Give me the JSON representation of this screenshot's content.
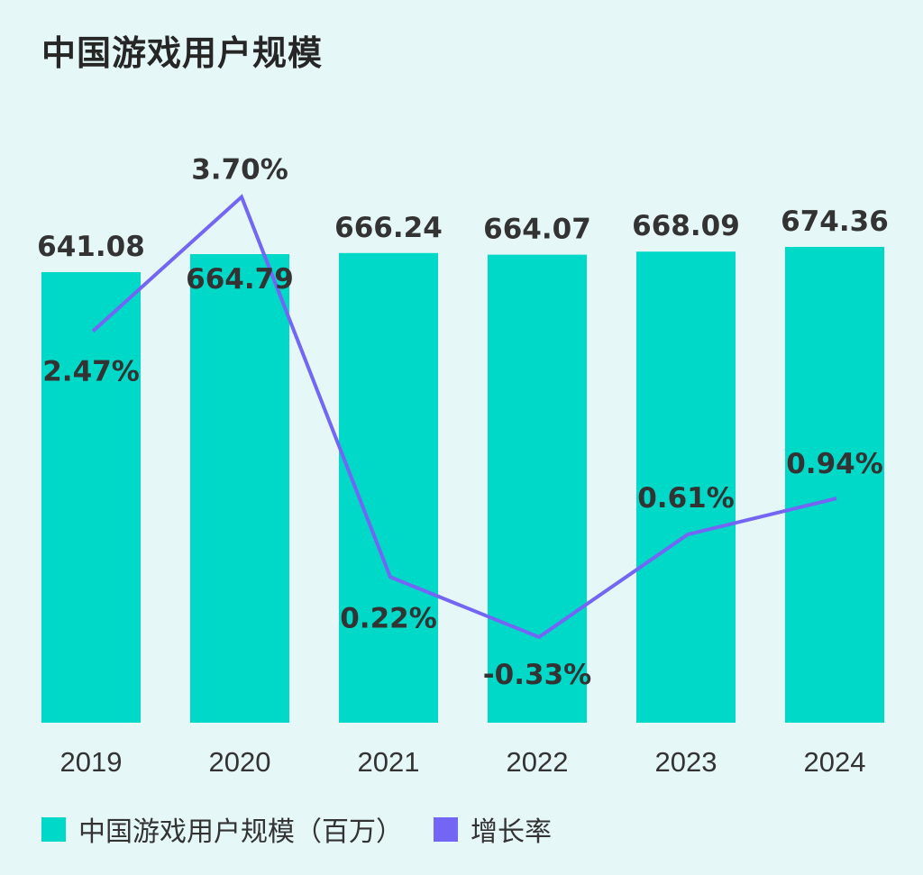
{
  "title": "中国游戏用户规模",
  "colors": {
    "background": "#e6f7f7",
    "bar": "#00d8c8",
    "line": "#7366f5",
    "text": "#333333"
  },
  "legend": {
    "bar_label": "中国游戏用户规模（百万）",
    "line_label": "增长率"
  },
  "chart_data": {
    "type": "bar",
    "categories": [
      "2019",
      "2020",
      "2021",
      "2022",
      "2023",
      "2024"
    ],
    "series": [
      {
        "name": "中国游戏用户规模（百万）",
        "type": "bar",
        "values": [
          641.08,
          664.79,
          666.24,
          664.07,
          668.09,
          674.36
        ],
        "labels": [
          "641.08",
          "664.79",
          "666.24",
          "664.07",
          "668.09",
          "674.36"
        ]
      },
      {
        "name": "增长率",
        "type": "line",
        "values": [
          2.47,
          3.7,
          0.22,
          -0.33,
          0.61,
          0.94
        ],
        "labels": [
          "2.47%",
          "3.70%",
          "0.22%",
          "-0.33%",
          "0.61%",
          "0.94%"
        ]
      }
    ],
    "title": "中国游戏用户规模",
    "xlabel": "",
    "ylabel": "",
    "grid": false,
    "legend": "bottom-left"
  }
}
